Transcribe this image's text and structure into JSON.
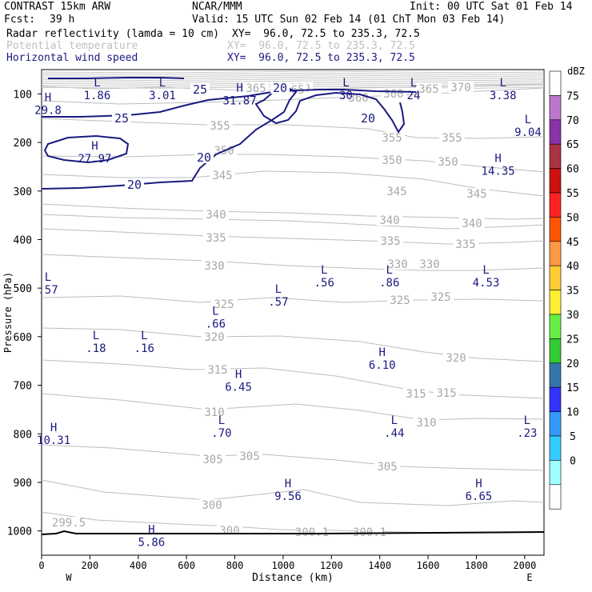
{
  "header": {
    "model": "CONTRAST 15km ARW",
    "center": "NCAR/MMM",
    "init": "Init: 00 UTC Sat 01 Feb 14",
    "fcst_label": "Fcst:",
    "fcst_value": "39 h",
    "valid": "Valid: 15 UTC Sun 02 Feb 14 (01 ChT Mon 03 Feb 14)",
    "fields": [
      {
        "name": "Radar reflectivity (lamda = 10 cm)",
        "xy": "XY=  96.0, 72.5 to 235.3, 72.5",
        "color": "#000000"
      },
      {
        "name": "Potential temperature",
        "xy": "XY=  96.0, 72.5 to 235.3, 72.5",
        "color": "#c0c0c0"
      },
      {
        "name": "Horizontal wind speed",
        "xy": "XY=  96.0, 72.5 to 235.3, 72.5",
        "color": "#1a1a80"
      }
    ]
  },
  "chart_data": {
    "type": "cross-section",
    "xlabel": "Distance (km)",
    "ylabel": "Pressure (hPa)",
    "xlim": [
      0,
      2080
    ],
    "ylim": [
      1050,
      50
    ],
    "x_ticks": [
      "0",
      "200",
      "400",
      "600",
      "800",
      "1000",
      "1200",
      "1400",
      "1600",
      "1800",
      "2000"
    ],
    "y_ticks": [
      "100",
      "200",
      "300",
      "400",
      "500",
      "600",
      "700",
      "800",
      "900",
      "1000"
    ],
    "x_end_labels": {
      "left": "W",
      "right": "E"
    },
    "theta_labels": [
      {
        "text": "365",
        "x": 0,
        "p": 110
      },
      {
        "text": "370",
        "x": 0,
        "p": 110
      },
      {
        "text": "365",
        "x": 0,
        "p": 110
      },
      {
        "text": "360",
        "x": 0,
        "p": 125
      },
      {
        "text": "360",
        "x": 0,
        "p": 118
      },
      {
        "text": "365",
        "x": 0,
        "p": 110
      },
      {
        "text": "370",
        "x": 0,
        "p": 105
      },
      {
        "text": "355",
        "x": 0,
        "p": 160
      },
      {
        "text": "355",
        "x": 0,
        "p": 175
      },
      {
        "text": "355",
        "x": 0,
        "p": 175
      },
      {
        "text": "350",
        "x": 0,
        "p": 215
      },
      {
        "text": "350",
        "x": 0,
        "p": 240
      },
      {
        "text": "350",
        "x": 0,
        "p": 255
      },
      {
        "text": "345",
        "x": 0,
        "p": 270
      },
      {
        "text": "345",
        "x": 0,
        "p": 290
      },
      {
        "text": "345",
        "x": 0,
        "p": 295
      },
      {
        "text": "340",
        "x": 0,
        "p": 355
      },
      {
        "text": "340",
        "x": 0,
        "p": 375
      },
      {
        "text": "340",
        "x": 0,
        "p": 378
      },
      {
        "text": "335",
        "x": 0,
        "p": 405
      },
      {
        "text": "335",
        "x": 0,
        "p": 410
      },
      {
        "text": "335",
        "x": 0,
        "p": 412
      },
      {
        "text": "330",
        "x": 0,
        "p": 465
      },
      {
        "text": "330",
        "x": 0,
        "p": 455
      },
      {
        "text": "330",
        "x": 0,
        "p": 453
      },
      {
        "text": "325",
        "x": 0,
        "p": 550
      },
      {
        "text": "325",
        "x": 0,
        "p": 530
      },
      {
        "text": "325",
        "x": 0,
        "p": 525
      },
      {
        "text": "320",
        "x": 0,
        "p": 603
      },
      {
        "text": "320",
        "x": 0,
        "p": 640
      },
      {
        "text": "315",
        "x": 0,
        "p": 675
      },
      {
        "text": "315",
        "x": 0,
        "p": 715
      },
      {
        "text": "315",
        "x": 0,
        "p": 715
      },
      {
        "text": "310",
        "x": 0,
        "p": 765
      },
      {
        "text": "310",
        "x": 0,
        "p": 788
      },
      {
        "text": "305",
        "x": 0,
        "p": 835
      },
      {
        "text": "305",
        "x": 0,
        "p": 830
      },
      {
        "text": "305",
        "x": 0,
        "p": 880
      },
      {
        "text": "300",
        "x": 0,
        "p": 940
      },
      {
        "text": "300",
        "x": 0,
        "p": 1005
      },
      {
        "text": "299.5",
        "x": 0,
        "p": 985
      },
      {
        "text": "300.1",
        "x": 0,
        "p": 1005
      },
      {
        "text": "300.1",
        "x": 0,
        "p": 1005
      }
    ],
    "wind_contours": [
      "20",
      "25",
      "20",
      "20",
      "25",
      "20"
    ],
    "extrema": [
      {
        "kind": "L",
        "value": "1.86",
        "x": 230,
        "p": 85
      },
      {
        "kind": "L",
        "value": "3.01",
        "x": 500,
        "p": 85
      },
      {
        "kind": "H",
        "value": "31.87",
        "x": 820,
        "p": 95
      },
      {
        "kind": "L",
        "value": "30",
        "x": 1260,
        "p": 85
      },
      {
        "kind": "L",
        "value": "24",
        "x": 1540,
        "p": 85
      },
      {
        "kind": "L",
        "value": "3.38",
        "x": 1910,
        "p": 85
      },
      {
        "kind": "H",
        "value": "29.8",
        "x": 25,
        "p": 115
      },
      {
        "kind": "L",
        "value": "9.04",
        "x": 2020,
        "p": 160
      },
      {
        "kind": "H",
        "value": "27.97",
        "x": 220,
        "p": 215
      },
      {
        "kind": "H",
        "value": "14.35",
        "x": 1890,
        "p": 240
      },
      {
        "kind": "L",
        "value": ".57",
        "x": 0,
        "p": 485
      },
      {
        "kind": "L",
        "value": ".56",
        "x": 1170,
        "p": 470
      },
      {
        "kind": "L",
        "value": ".86",
        "x": 1440,
        "p": 470
      },
      {
        "kind": "L",
        "value": "4.53",
        "x": 1840,
        "p": 470
      },
      {
        "kind": "L",
        "value": ".57",
        "x": 980,
        "p": 510
      },
      {
        "kind": "L",
        "value": ".66",
        "x": 720,
        "p": 555
      },
      {
        "kind": "L",
        "value": ".18",
        "x": 225,
        "p": 605
      },
      {
        "kind": "L",
        "value": ".16",
        "x": 425,
        "p": 605
      },
      {
        "kind": "H",
        "value": "6.10",
        "x": 1410,
        "p": 640
      },
      {
        "kind": "H",
        "value": "6.45",
        "x": 815,
        "p": 685
      },
      {
        "kind": "L",
        "value": ".70",
        "x": 745,
        "p": 780
      },
      {
        "kind": "L",
        "value": ".44",
        "x": 1460,
        "p": 780
      },
      {
        "kind": "L",
        "value": ".23",
        "x": 2010,
        "p": 780
      },
      {
        "kind": "H",
        "value": "10.31",
        "x": 50,
        "p": 795
      },
      {
        "kind": "H",
        "value": "9.56",
        "x": 1020,
        "p": 910
      },
      {
        "kind": "H",
        "value": "6.65",
        "x": 1810,
        "p": 910
      },
      {
        "kind": "H",
        "value": "5.86",
        "x": 455,
        "p": 1005
      }
    ],
    "colorbar": {
      "unit": "dBZ",
      "levels": [
        "0",
        "5",
        "10",
        "15",
        "20",
        "25",
        "30",
        "35",
        "40",
        "45",
        "50",
        "55",
        "60",
        "65",
        "70",
        "75"
      ],
      "colors": [
        "#ffffff",
        "#a0ffff",
        "#33ccff",
        "#3399ff",
        "#3333ff",
        "#3377aa",
        "#33cc33",
        "#66ee44",
        "#ffee33",
        "#ffcc33",
        "#ff9944",
        "#ff5500",
        "#ff2222",
        "#cc1111",
        "#aa3344",
        "#8833aa",
        "#bb77cc",
        "#ffffff"
      ]
    }
  }
}
